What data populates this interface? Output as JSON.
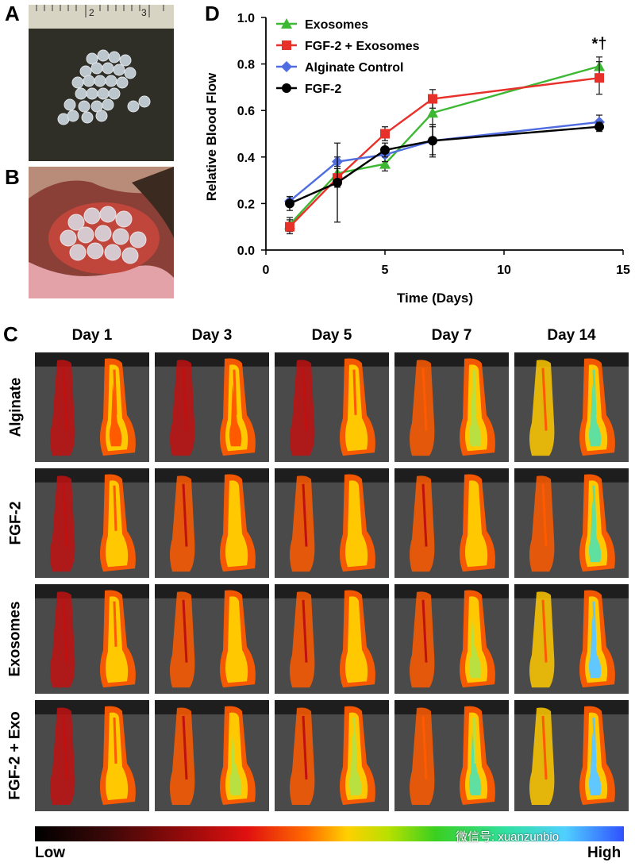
{
  "panels": {
    "a": "A",
    "b": "B",
    "c": "C",
    "d": "D"
  },
  "ruler_ticks": [
    "2",
    "3"
  ],
  "chart_data": {
    "type": "line",
    "xlabel": "Time (Days)",
    "ylabel": "Relative Blood Flow",
    "xlim": [
      0,
      15
    ],
    "ylim": [
      0.0,
      1.0
    ],
    "xticks": [
      "0",
      "5",
      "10",
      "15"
    ],
    "yticks": [
      "0.0",
      "0.2",
      "0.4",
      "0.6",
      "0.8",
      "1.0"
    ],
    "x": [
      1,
      3,
      5,
      7,
      14
    ],
    "annotation": "*†",
    "series": [
      {
        "name": "Exosomes",
        "color": "#3cb832",
        "marker": "triangle",
        "values": [
          0.11,
          0.33,
          0.37,
          0.59,
          0.79
        ],
        "errors": [
          0.03,
          0.04,
          0.03,
          0.05,
          0.04
        ]
      },
      {
        "name": "FGF-2 + Exosomes",
        "color": "#e8302a",
        "marker": "square",
        "values": [
          0.1,
          0.31,
          0.5,
          0.65,
          0.74
        ],
        "errors": [
          0.03,
          0.04,
          0.03,
          0.04,
          0.07
        ]
      },
      {
        "name": "Alginate Control",
        "color": "#4f6ce0",
        "marker": "diamond",
        "values": [
          0.21,
          0.38,
          0.41,
          0.47,
          0.55
        ],
        "errors": [
          0.02,
          0.02,
          0.03,
          0.06,
          0.03
        ]
      },
      {
        "name": "FGF-2",
        "color": "#000000",
        "marker": "circle",
        "values": [
          0.2,
          0.29,
          0.43,
          0.47,
          0.53
        ],
        "errors": [
          0.03,
          0.17,
          0.03,
          0.07,
          0.02
        ]
      }
    ]
  },
  "grid": {
    "days": [
      "Day 1",
      "Day 3",
      "Day 5",
      "Day 7",
      "Day 14"
    ],
    "groups": [
      "Alginate",
      "FGF-2",
      "Exosomes",
      "FGF-2 + Exo"
    ],
    "perfusion": [
      [
        0.3,
        0.38,
        0.42,
        0.72,
        0.85
      ],
      [
        0.45,
        0.55,
        0.55,
        0.55,
        0.8
      ],
      [
        0.4,
        0.5,
        0.5,
        0.6,
        0.9
      ],
      [
        0.42,
        0.6,
        0.65,
        0.75,
        0.95
      ]
    ]
  },
  "scale": {
    "low": "Low",
    "high": "High"
  },
  "watermark": "微信号: xuanzunbio"
}
